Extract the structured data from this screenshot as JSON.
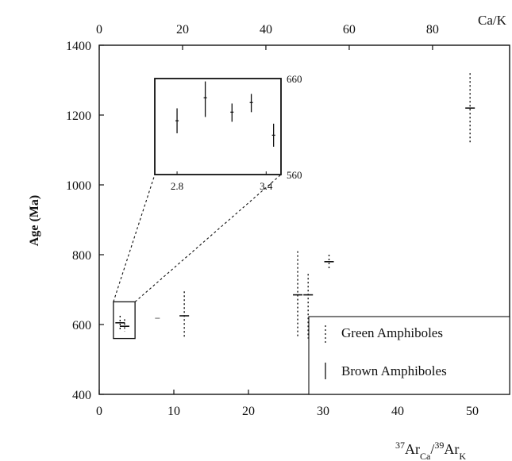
{
  "chart_data": {
    "type": "scatter",
    "title": "",
    "xlabel": {
      "base": "Ar",
      "sup1": "37",
      "sub1": "Ca",
      "slash": "/",
      "sup2": "39",
      "sub2": "K"
    },
    "ylabel": "Age (Ma)",
    "top_axis_label": "Ca/K",
    "xlim": [
      0,
      55
    ],
    "ylim": [
      400,
      1400
    ],
    "top_xlim": [
      0,
      98.5
    ],
    "x_ticks": [
      "0",
      "10",
      "20",
      "30",
      "40",
      "50"
    ],
    "x_tick_values": [
      0,
      10,
      20,
      30,
      40,
      50
    ],
    "y_ticks": [
      "400",
      "600",
      "800",
      "1000",
      "1200",
      "1400"
    ],
    "y_tick_values": [
      400,
      600,
      800,
      1000,
      1200,
      1400
    ],
    "top_ticks": [
      "0",
      "20",
      "40",
      "60",
      "80"
    ],
    "top_tick_values": [
      0,
      20,
      40,
      60,
      80
    ],
    "legend": {
      "position": "bottom-right",
      "entries": [
        {
          "label": "Green Amphiboles",
          "style": "dotted"
        },
        {
          "label": "Brown Amphiboles",
          "style": "solid"
        }
      ]
    },
    "series": [
      {
        "name": "Green Amphiboles",
        "style": "dotted",
        "points": [
          {
            "x": 2.8,
            "y": 605,
            "low": 585,
            "high": 625
          },
          {
            "x": 3.4,
            "y": 595,
            "low": 580,
            "high": 615
          },
          {
            "x": 11.4,
            "y": 625,
            "low": 560,
            "high": 695
          },
          {
            "x": 26.6,
            "y": 685,
            "low": 565,
            "high": 810
          },
          {
            "x": 28.0,
            "y": 685,
            "low": 560,
            "high": 745
          },
          {
            "x": 30.8,
            "y": 780,
            "low": 755,
            "high": 800
          },
          {
            "x": 49.7,
            "y": 1220,
            "low": 1120,
            "high": 1320
          }
        ]
      },
      {
        "name": "Brown Amphiboles",
        "style": "solid",
        "points": [
          {
            "x": 7.8,
            "y": 618,
            "low": 618,
            "high": 618
          }
        ]
      }
    ],
    "inset": {
      "source_x": [
        1.9,
        4.8
      ],
      "source_y": [
        560,
        665
      ],
      "xlim": [
        2.65,
        3.5
      ],
      "ylim": [
        560,
        660
      ],
      "x_ticks": [
        "2.8",
        "3.4"
      ],
      "x_tick_values": [
        2.8,
        3.4
      ],
      "y_ticks": [
        "560",
        "660"
      ],
      "y_tick_values": [
        560,
        660
      ],
      "series": [
        {
          "name": "Green Amphiboles",
          "style": "solid",
          "points": [
            {
              "x": 2.8,
              "y": 616,
              "low": 603,
              "high": 629
            },
            {
              "x": 2.99,
              "y": 640,
              "low": 620,
              "high": 657
            },
            {
              "x": 3.17,
              "y": 625,
              "low": 615,
              "high": 634
            },
            {
              "x": 3.3,
              "y": 635,
              "low": 625,
              "high": 644
            },
            {
              "x": 3.45,
              "y": 601,
              "low": 589,
              "high": 613
            }
          ]
        }
      ]
    }
  }
}
